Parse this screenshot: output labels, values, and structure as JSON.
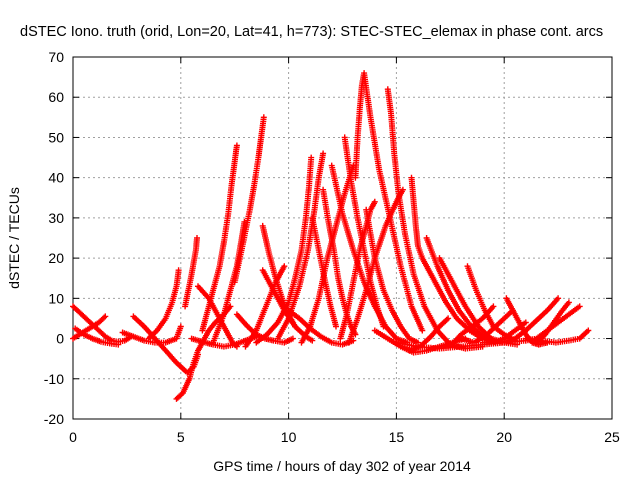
{
  "chart_data": {
    "type": "scatter",
    "title": "dSTEC Iono. truth (orid, Lon=20, Lat=41, h=773): STEC-STEC_elemax in phase cont. arcs",
    "xlabel": "GPS time / hours of day 302 of year 2014",
    "ylabel": "dSTEC  / TECUs",
    "xlim": [
      0,
      25
    ],
    "ylim": [
      -20,
      70
    ],
    "xticks": [
      0,
      5,
      10,
      15,
      20,
      25
    ],
    "yticks": [
      -20,
      -10,
      0,
      10,
      20,
      30,
      40,
      50,
      60,
      70
    ],
    "grid": true,
    "marker": "+",
    "color": "#ff0000",
    "series": [
      {
        "x": [
          0.0,
          0.3,
          0.6,
          0.9,
          1.2,
          1.5,
          1.8,
          2.1,
          2.4,
          2.7
        ],
        "y": [
          8,
          6.5,
          5,
          3.5,
          2,
          0.5,
          -0.5,
          -0.8,
          -0.5,
          0.5
        ]
      },
      {
        "x": [
          0.0,
          0.3,
          0.6,
          0.9,
          1.2,
          1.5
        ],
        "y": [
          0,
          1,
          2,
          3,
          4,
          5.5
        ]
      },
      {
        "x": [
          0.1,
          0.5,
          0.9,
          1.3,
          1.7,
          2.1
        ],
        "y": [
          2.5,
          1.0,
          0.0,
          -0.8,
          -1.2,
          -1.5
        ]
      },
      {
        "x": [
          2.3,
          2.8,
          3.3,
          3.8,
          4.3,
          4.8,
          5.0
        ],
        "y": [
          1.5,
          0.5,
          -0.5,
          -1.0,
          -1.0,
          0,
          3
        ]
      },
      {
        "x": [
          2.8,
          3.3,
          3.8,
          4.3,
          4.8,
          5.3,
          5.6,
          5.8
        ],
        "y": [
          5.5,
          3,
          0,
          -3,
          -6,
          -8.5,
          -7,
          -4
        ]
      },
      {
        "x": [
          3.5,
          3.9,
          4.3,
          4.6,
          4.8,
          4.9
        ],
        "y": [
          0,
          2,
          5,
          9,
          13,
          17
        ]
      },
      {
        "x": [
          4.8,
          5.1,
          5.4,
          5.6,
          5.8,
          6.0,
          6.3,
          6.6,
          7.0,
          7.3
        ],
        "y": [
          -15,
          -13.5,
          -10,
          -6,
          -3,
          -1,
          2,
          4,
          6,
          8
        ]
      },
      {
        "x": [
          5.2,
          5.35,
          5.5,
          5.6,
          5.7,
          5.75
        ],
        "y": [
          8,
          12,
          16,
          19,
          22,
          25
        ]
      },
      {
        "x": [
          5.5,
          6.0,
          6.5,
          7.0,
          7.5,
          8.0,
          8.5
        ],
        "y": [
          0,
          -0.8,
          -1.5,
          -2,
          -1.5,
          -0.5,
          0.5
        ]
      },
      {
        "x": [
          5.8,
          6.3,
          6.7,
          7.1,
          7.4,
          7.6
        ],
        "y": [
          13,
          10,
          6,
          2,
          -1,
          -2
        ]
      },
      {
        "x": [
          6.0,
          6.4,
          6.8,
          7.0,
          7.2,
          7.35,
          7.5,
          7.6
        ],
        "y": [
          2,
          10,
          18,
          24,
          31,
          38,
          44,
          48
        ]
      },
      {
        "x": [
          6.5,
          7.0,
          7.3,
          7.6,
          7.8,
          7.95
        ],
        "y": [
          -1,
          6,
          12,
          18,
          24,
          29
        ]
      },
      {
        "x": [
          7.5,
          7.9,
          8.2,
          8.4,
          8.6,
          8.75,
          8.85
        ],
        "y": [
          14,
          24,
          32,
          38,
          45,
          51,
          55
        ]
      },
      {
        "x": [
          7.6,
          8.1,
          8.5,
          8.9,
          9.3,
          9.8,
          10.2
        ],
        "y": [
          6,
          3,
          1,
          0,
          -0.5,
          -1,
          0
        ]
      },
      {
        "x": [
          8.0,
          8.5,
          8.8,
          9.1,
          9.4,
          9.6,
          9.8
        ],
        "y": [
          -2,
          2,
          6,
          10,
          14,
          16,
          18
        ]
      },
      {
        "x": [
          8.5,
          9.0,
          9.5,
          10.0,
          10.3,
          10.6,
          10.8,
          10.95,
          11.05
        ],
        "y": [
          -1,
          1,
          4,
          9,
          15,
          22,
          30,
          38,
          45
        ]
      },
      {
        "x": [
          8.8,
          9.3,
          9.8,
          10.3,
          10.8,
          11.1
        ],
        "y": [
          17,
          12,
          7,
          3,
          0.5,
          -0.5
        ]
      },
      {
        "x": [
          8.8,
          9.1,
          9.4,
          9.7,
          10.0,
          10.3
        ],
        "y": [
          28,
          21,
          15,
          10,
          6,
          3
        ]
      },
      {
        "x": [
          9.5,
          10.0,
          10.5,
          10.9,
          11.2,
          11.4,
          11.6
        ],
        "y": [
          0,
          5,
          13,
          22,
          32,
          40,
          46
        ]
      },
      {
        "x": [
          10.0,
          10.5,
          11.0,
          11.5,
          12.0,
          12.5,
          13.0
        ],
        "y": [
          7,
          5,
          2.5,
          0.5,
          -1,
          -1.5,
          -0.5
        ]
      },
      {
        "x": [
          10.6,
          11.0,
          11.4,
          11.8,
          12.2,
          12.6,
          13.0
        ],
        "y": [
          -1,
          3,
          10,
          20,
          28,
          36,
          43
        ]
      },
      {
        "x": [
          11.1,
          11.4,
          11.7,
          11.95,
          12.2
        ],
        "y": [
          30,
          22,
          14,
          8,
          3
        ]
      },
      {
        "x": [
          11.6,
          11.85,
          12.1,
          12.3,
          12.5,
          12.7,
          12.9,
          13.1
        ],
        "y": [
          37,
          29,
          22,
          15,
          10,
          6,
          3,
          1
        ]
      },
      {
        "x": [
          12.0,
          12.5,
          13.0,
          13.5,
          14.0,
          14.5,
          15.0,
          15.5
        ],
        "y": [
          43,
          31,
          22,
          14,
          8,
          3,
          0,
          -1
        ]
      },
      {
        "x": [
          12.4,
          12.7,
          13.0,
          13.3,
          13.6,
          13.8,
          14.0
        ],
        "y": [
          0,
          6,
          14,
          22,
          28,
          32,
          34
        ]
      },
      {
        "x": [
          12.6,
          12.9,
          13.2,
          13.5,
          13.8,
          14.1,
          14.4
        ],
        "y": [
          50,
          39,
          30,
          22,
          14,
          8,
          3
        ]
      },
      {
        "x": [
          12.8,
          13.2,
          13.6,
          14.0,
          14.5,
          15.0,
          15.3
        ],
        "y": [
          -1,
          5,
          12,
          20,
          28,
          34,
          37
        ]
      },
      {
        "x": [
          13.1,
          13.2,
          13.3,
          13.4,
          13.5,
          13.8,
          14.2,
          14.7,
          15.2,
          15.7,
          16.2
        ],
        "y": [
          40,
          50,
          57,
          63,
          66,
          55,
          42,
          30,
          18,
          8,
          2
        ]
      },
      {
        "x": [
          13.6,
          14.0,
          14.4,
          14.8,
          15.2,
          15.6,
          16.0
        ],
        "y": [
          32,
          20,
          12,
          7,
          3,
          0,
          -1
        ]
      },
      {
        "x": [
          14.6,
          14.75,
          14.9,
          15.1,
          15.4,
          15.8,
          16.3,
          16.9,
          17.5,
          18.2,
          19.0
        ],
        "y": [
          62,
          56,
          46,
          36,
          26,
          16,
          8,
          2,
          -1.5,
          -2.5,
          -2
        ]
      },
      {
        "x": [
          14.0,
          14.6,
          15.2,
          15.8,
          16.4,
          17.0,
          17.6,
          18.2
        ],
        "y": [
          2,
          0,
          -2,
          -3.5,
          -3,
          -2,
          -1,
          0
        ]
      },
      {
        "x": [
          15.7,
          15.8,
          15.9,
          16.0,
          16.2,
          16.5,
          16.9,
          17.3,
          17.8,
          18.4,
          19.0,
          19.6
        ],
        "y": [
          40,
          34,
          28,
          23,
          20,
          17,
          13,
          9,
          5,
          2,
          0,
          -1
        ]
      },
      {
        "x": [
          15.6,
          16.1,
          16.6,
          17.0,
          17.4
        ],
        "y": [
          -3,
          -2,
          0.5,
          3,
          5
        ]
      },
      {
        "x": [
          15.0,
          16.0,
          17.0,
          18.0,
          19.0,
          20.0,
          21.0
        ],
        "y": [
          -1,
          -2,
          -2.5,
          -2,
          -1.5,
          -1,
          -0.5
        ]
      },
      {
        "x": [
          16.4,
          16.9,
          17.4,
          17.9,
          18.4,
          18.9,
          19.4,
          19.9
        ],
        "y": [
          25,
          18,
          12,
          7,
          3.5,
          1,
          -0.5,
          -1
        ]
      },
      {
        "x": [
          17.0,
          17.6,
          18.2,
          18.8,
          19.4,
          20.0,
          20.6
        ],
        "y": [
          20,
          14,
          8,
          3,
          0,
          -1,
          -1.5
        ]
      },
      {
        "x": [
          18.3,
          18.7,
          19.1,
          19.5,
          20.0,
          20.5
        ],
        "y": [
          18,
          12,
          7,
          3,
          1,
          -0.5
        ]
      },
      {
        "x": [
          17.5,
          18.0,
          18.5,
          19.0,
          19.5
        ],
        "y": [
          -2,
          1,
          3,
          5,
          8
        ]
      },
      {
        "x": [
          18.0,
          18.6,
          19.2,
          19.8,
          20.4
        ],
        "y": [
          0,
          -1,
          1,
          4,
          7
        ]
      },
      {
        "x": [
          19.0,
          19.5,
          20.0,
          20.5,
          21.0
        ],
        "y": [
          -1,
          -1,
          0,
          2,
          4
        ]
      },
      {
        "x": [
          20.1,
          20.4,
          20.7,
          21.0,
          21.3,
          21.6,
          22.0
        ],
        "y": [
          10,
          7,
          4,
          1,
          -1,
          -1.5,
          -1
        ]
      },
      {
        "x": [
          20.0,
          20.5,
          21.0,
          21.5,
          22.0,
          22.5
        ],
        "y": [
          -1,
          0,
          2,
          4.5,
          7,
          10
        ]
      },
      {
        "x": [
          21.0,
          21.5,
          22.0,
          22.5,
          23.0,
          23.5
        ],
        "y": [
          -0.5,
          0,
          2,
          4,
          6,
          8
        ]
      },
      {
        "x": [
          21.5,
          21.9,
          22.3,
          22.7,
          23.0
        ],
        "y": [
          -1,
          1,
          4,
          7,
          9
        ]
      },
      {
        "x": [
          21.0,
          21.7,
          22.4,
          23.0,
          23.5,
          23.9
        ],
        "y": [
          0,
          -0.5,
          -1,
          -0.5,
          0,
          2
        ]
      }
    ]
  }
}
